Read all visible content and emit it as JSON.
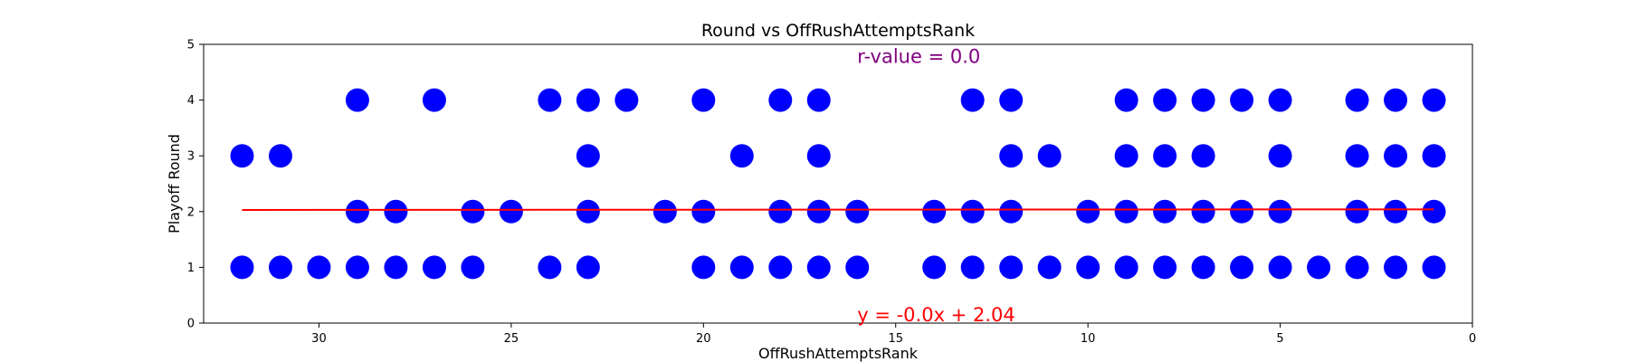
{
  "chart_data": {
    "type": "scatter",
    "title": "Round vs OffRushAttemptsRank",
    "xlabel": "OffRushAttemptsRank",
    "ylabel": "Playoff Round",
    "xlim": [
      33,
      0
    ],
    "ylim": [
      0,
      5
    ],
    "x_inverted": true,
    "xticks": [
      30,
      25,
      20,
      15,
      10,
      5,
      0
    ],
    "yticks": [
      0,
      1,
      2,
      3,
      4,
      5
    ],
    "grid": false,
    "point_color": "#0000ff",
    "line_color": "#ff0000",
    "r_value_color": "#800080",
    "series": [
      {
        "points": [
          {
            "x": 32,
            "y": 3
          },
          {
            "x": 31,
            "y": 3
          },
          {
            "x": 29,
            "y": 4
          },
          {
            "x": 27,
            "y": 4
          },
          {
            "x": 24,
            "y": 4
          },
          {
            "x": 23,
            "y": 4
          },
          {
            "x": 22,
            "y": 4
          },
          {
            "x": 20,
            "y": 4
          },
          {
            "x": 18,
            "y": 4
          },
          {
            "x": 17,
            "y": 4
          },
          {
            "x": 13,
            "y": 4
          },
          {
            "x": 12,
            "y": 4
          },
          {
            "x": 9,
            "y": 4
          },
          {
            "x": 8,
            "y": 4
          },
          {
            "x": 7,
            "y": 4
          },
          {
            "x": 6,
            "y": 4
          },
          {
            "x": 5,
            "y": 4
          },
          {
            "x": 3,
            "y": 4
          },
          {
            "x": 2,
            "y": 4
          },
          {
            "x": 1,
            "y": 4
          },
          {
            "x": 23,
            "y": 3
          },
          {
            "x": 19,
            "y": 3
          },
          {
            "x": 17,
            "y": 3
          },
          {
            "x": 12,
            "y": 3
          },
          {
            "x": 11,
            "y": 3
          },
          {
            "x": 9,
            "y": 3
          },
          {
            "x": 8,
            "y": 3
          },
          {
            "x": 7,
            "y": 3
          },
          {
            "x": 5,
            "y": 3
          },
          {
            "x": 3,
            "y": 3
          },
          {
            "x": 2,
            "y": 3
          },
          {
            "x": 1,
            "y": 3
          },
          {
            "x": 29,
            "y": 2
          },
          {
            "x": 28,
            "y": 2
          },
          {
            "x": 26,
            "y": 2
          },
          {
            "x": 25,
            "y": 2
          },
          {
            "x": 23,
            "y": 2
          },
          {
            "x": 21,
            "y": 2
          },
          {
            "x": 20,
            "y": 2
          },
          {
            "x": 18,
            "y": 2
          },
          {
            "x": 17,
            "y": 2
          },
          {
            "x": 16,
            "y": 2
          },
          {
            "x": 14,
            "y": 2
          },
          {
            "x": 13,
            "y": 2
          },
          {
            "x": 12,
            "y": 2
          },
          {
            "x": 10,
            "y": 2
          },
          {
            "x": 9,
            "y": 2
          },
          {
            "x": 8,
            "y": 2
          },
          {
            "x": 7,
            "y": 2
          },
          {
            "x": 6,
            "y": 2
          },
          {
            "x": 5,
            "y": 2
          },
          {
            "x": 3,
            "y": 2
          },
          {
            "x": 2,
            "y": 2
          },
          {
            "x": 1,
            "y": 2
          },
          {
            "x": 32,
            "y": 1
          },
          {
            "x": 31,
            "y": 1
          },
          {
            "x": 30,
            "y": 1
          },
          {
            "x": 29,
            "y": 1
          },
          {
            "x": 28,
            "y": 1
          },
          {
            "x": 27,
            "y": 1
          },
          {
            "x": 26,
            "y": 1
          },
          {
            "x": 24,
            "y": 1
          },
          {
            "x": 23,
            "y": 1
          },
          {
            "x": 20,
            "y": 1
          },
          {
            "x": 19,
            "y": 1
          },
          {
            "x": 18,
            "y": 1
          },
          {
            "x": 17,
            "y": 1
          },
          {
            "x": 16,
            "y": 1
          },
          {
            "x": 14,
            "y": 1
          },
          {
            "x": 13,
            "y": 1
          },
          {
            "x": 12,
            "y": 1
          },
          {
            "x": 11,
            "y": 1
          },
          {
            "x": 10,
            "y": 1
          },
          {
            "x": 9,
            "y": 1
          },
          {
            "x": 8,
            "y": 1
          },
          {
            "x": 7,
            "y": 1
          },
          {
            "x": 6,
            "y": 1
          },
          {
            "x": 5,
            "y": 1
          },
          {
            "x": 4,
            "y": 1
          },
          {
            "x": 3,
            "y": 1
          },
          {
            "x": 2,
            "y": 1
          },
          {
            "x": 1,
            "y": 1
          }
        ]
      }
    ],
    "regression_line": {
      "x1": 32,
      "y1": 2.03,
      "x2": 1,
      "y2": 2.04
    },
    "annotations": {
      "r_value": "r-value = 0.0",
      "equation": "y = -0.0x + 2.04"
    }
  }
}
